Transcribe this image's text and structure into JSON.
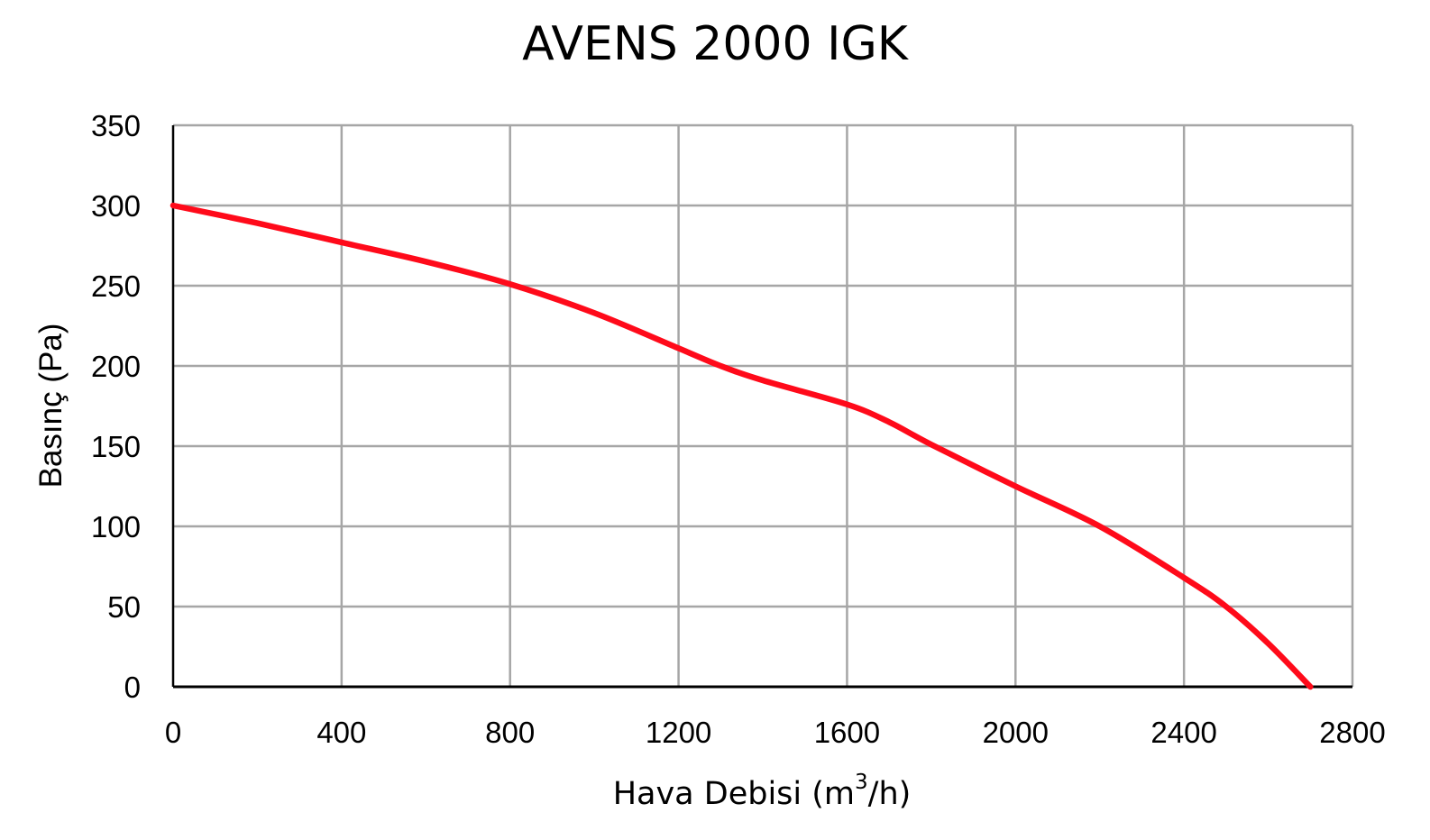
{
  "chart_data": {
    "type": "line",
    "title": "AVENS 2000 IGK",
    "xlabel": {
      "main": "Hava Debisi (m",
      "superscript": "3",
      "suffix": "/h)"
    },
    "ylabel": "Basınç (Pa)",
    "xlim": [
      0,
      2800
    ],
    "ylim": [
      0,
      350
    ],
    "x_ticks": [
      0,
      400,
      800,
      1200,
      1600,
      2000,
      2400,
      2800
    ],
    "y_ticks": [
      0,
      50,
      100,
      150,
      200,
      250,
      300,
      350
    ],
    "grid": true,
    "legend": "none",
    "series": [
      {
        "color": "#ff0a1a",
        "x": [
          0,
          200,
          400,
          600,
          800,
          1000,
          1200,
          1300,
          1400,
          1600,
          1700,
          1800,
          2000,
          2200,
          2400,
          2500,
          2600,
          2700
        ],
        "y": [
          300,
          289,
          277,
          265,
          251,
          233,
          211,
          200,
          191,
          176,
          165,
          151,
          125,
          100,
          68,
          50,
          27,
          0
        ]
      }
    ],
    "colors": {
      "grid": "#a6a6a6",
      "axis": "#000000",
      "background": "#ffffff"
    }
  }
}
